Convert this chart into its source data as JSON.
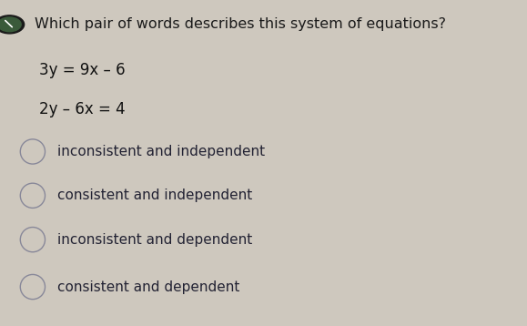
{
  "background_color": "#cec8be",
  "title": "Which pair of words describes this system of equations?",
  "title_fontsize": 11.5,
  "title_color": "#1a1a1a",
  "eq1": "3y = 9x – 6",
  "eq2": "2y – 6x = 4",
  "eq_fontsize": 12,
  "eq_color": "#111111",
  "options": [
    "inconsistent and independent",
    "consistent and independent",
    "inconsistent and dependent",
    "consistent and dependent"
  ],
  "option_fontsize": 11,
  "option_color": "#222233",
  "circle_edge_color": "#888899",
  "circle_lw": 1.0,
  "icon_outer_color": "#1a1a1a",
  "icon_inner_color": "#3a5a3a"
}
